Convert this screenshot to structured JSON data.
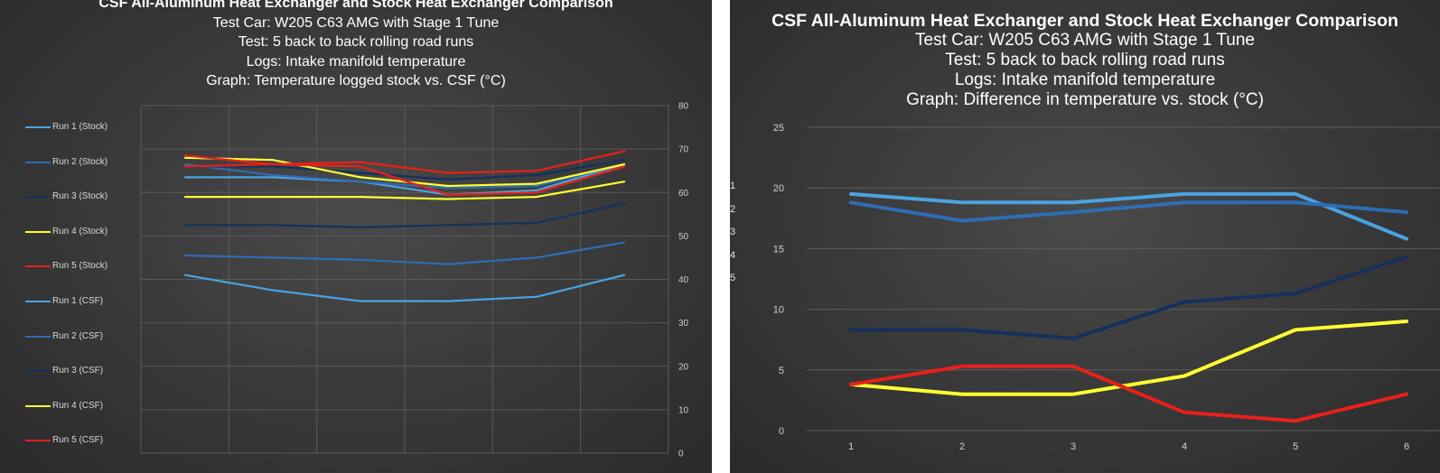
{
  "left": {
    "title_lines": [
      "CSF All-Aluminum Heat Exchanger and Stock Heat Exchanger Comparison",
      "Test Car: W205 C63 AMG with Stage 1 Tune",
      "Test: 5 back to back rolling road runs",
      "Logs: Intake manifold temperature",
      "Graph: Temperature logged stock vs. CSF (°C)"
    ]
  },
  "right": {
    "title_lines": [
      "CSF All-Aluminum Heat Exchanger and Stock Heat Exchanger Comparison",
      "Test Car: W205 C63 AMG with Stage 1 Tune",
      "Test: 5 back to back rolling road runs",
      "Logs: Intake manifold temperature",
      "Graph: Difference in temperature vs. stock (°C)"
    ],
    "clipped_labels": [
      "1",
      "2",
      "3",
      "4",
      "5"
    ]
  },
  "chart_data": [
    {
      "type": "line",
      "title": "Temperature logged stock vs. CSF (°C)",
      "x": [
        1,
        2,
        3,
        4,
        5,
        6
      ],
      "ylim": [
        0,
        80
      ],
      "yticks": [
        0,
        10,
        20,
        30,
        40,
        50,
        60,
        70,
        80
      ],
      "yaxis_side": "right",
      "grid": true,
      "legend_position": "left",
      "series": [
        {
          "name": "Run 1 (Stock)",
          "color": "#4aa3e0",
          "values": [
            63.5,
            63.5,
            62.5,
            59.5,
            60.5,
            66.5
          ]
        },
        {
          "name": "Run 2 (Stock)",
          "color": "#2e6db5",
          "values": [
            66.5,
            64.0,
            62.5,
            61.0,
            61.5,
            66.5
          ]
        },
        {
          "name": "Run 3 (Stock)",
          "color": "#16305e",
          "values": [
            66.0,
            66.0,
            64.5,
            63.0,
            64.0,
            67.5
          ]
        },
        {
          "name": "Run 4 (Stock)",
          "color": "#ffff33",
          "values": [
            68.0,
            67.5,
            63.5,
            61.5,
            62.0,
            66.5
          ]
        },
        {
          "name": "Run 5 (Stock)",
          "color": "#e8201a",
          "values": [
            68.5,
            66.5,
            66.0,
            59.5,
            60.0,
            66.0
          ]
        },
        {
          "name": "Run 1 (CSF)",
          "color": "#4aa3e0",
          "values": [
            41.0,
            37.5,
            35.0,
            35.0,
            36.0,
            41.0
          ]
        },
        {
          "name": "Run 2 (CSF)",
          "color": "#2e6db5",
          "values": [
            45.5,
            45.0,
            44.5,
            43.5,
            45.0,
            48.5
          ]
        },
        {
          "name": "Run 3 (CSF)",
          "color": "#16305e",
          "values": [
            52.5,
            52.5,
            52.0,
            52.5,
            53.0,
            57.5
          ]
        },
        {
          "name": "Run 4 (CSF)",
          "color": "#ffff33",
          "values": [
            59.0,
            59.0,
            59.0,
            58.5,
            59.0,
            62.5
          ]
        },
        {
          "name": "Run 5 (CSF)",
          "color": "#e8201a",
          "values": [
            66.0,
            66.5,
            67.0,
            64.5,
            65.0,
            69.5
          ]
        }
      ]
    },
    {
      "type": "line",
      "title": "Difference in temperature vs. stock (°C)",
      "x": [
        1,
        2,
        3,
        4,
        5,
        6
      ],
      "ylim": [
        0,
        25
      ],
      "yticks": [
        0,
        5,
        10,
        15,
        20,
        25
      ],
      "xticks": [
        "1",
        "2",
        "3",
        "4",
        "5",
        "6"
      ],
      "grid": true,
      "series": [
        {
          "name": "Run 1",
          "color": "#4aa3e0",
          "values": [
            19.5,
            18.8,
            18.8,
            19.5,
            19.5,
            15.8
          ]
        },
        {
          "name": "Run 2",
          "color": "#2e6db5",
          "values": [
            18.8,
            17.3,
            18.0,
            18.8,
            18.8,
            18.0
          ]
        },
        {
          "name": "Run 3",
          "color": "#16305e",
          "values": [
            8.3,
            8.3,
            7.6,
            10.6,
            11.3,
            14.3
          ]
        },
        {
          "name": "Run 4",
          "color": "#ffff33",
          "values": [
            3.8,
            3.0,
            3.0,
            4.5,
            8.3,
            9.0
          ]
        },
        {
          "name": "Run 5",
          "color": "#e8201a",
          "values": [
            3.8,
            5.3,
            5.3,
            1.5,
            0.8,
            3.0
          ]
        }
      ]
    }
  ]
}
